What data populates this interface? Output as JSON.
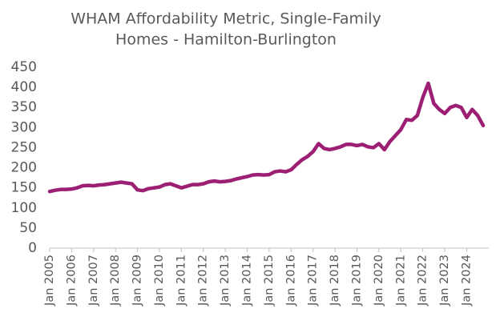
{
  "chart_data": {
    "type": "line",
    "title": [
      "WHAM Affordability Metric, Single-Family",
      "Homes - Hamilton-Burlington"
    ],
    "categories": [
      "Jan 2005",
      null,
      null,
      null,
      "Jan 2006",
      null,
      null,
      null,
      "Jan 2007",
      null,
      null,
      null,
      "Jan 2008",
      null,
      null,
      null,
      "Jan 2009",
      null,
      null,
      null,
      "Jan 2010",
      null,
      null,
      null,
      "Jan 2011",
      null,
      null,
      null,
      "Jan 2012",
      null,
      null,
      null,
      "Jan 2013",
      null,
      null,
      null,
      "Jan 2014",
      null,
      null,
      null,
      "Jan 2015",
      null,
      null,
      null,
      "Jan 2016",
      null,
      null,
      null,
      "Jan 2017",
      null,
      null,
      null,
      "Jan 2018",
      null,
      null,
      null,
      "Jan 2019",
      null,
      null,
      null,
      "Jan 2020",
      null,
      null,
      null,
      "Jan 2021",
      null,
      null,
      null,
      "Jan 2022",
      null,
      null,
      null,
      "Jan 2023",
      null,
      null,
      null,
      "Jan 2024",
      null,
      null,
      null
    ],
    "series": [
      {
        "name": "WHAM Affordability Metric",
        "color": "#9c1f74",
        "values": [
          141,
          144,
          146,
          146,
          147,
          150,
          155,
          156,
          155,
          157,
          158,
          160,
          162,
          164,
          162,
          160,
          145,
          143,
          148,
          150,
          152,
          158,
          160,
          155,
          150,
          154,
          158,
          158,
          160,
          165,
          167,
          165,
          166,
          168,
          172,
          175,
          178,
          182,
          183,
          182,
          183,
          190,
          192,
          190,
          195,
          208,
          220,
          228,
          240,
          260,
          248,
          245,
          248,
          252,
          258,
          258,
          255,
          258,
          252,
          250,
          260,
          245,
          265,
          280,
          295,
          320,
          318,
          330,
          375,
          410,
          360,
          345,
          335,
          350,
          355,
          350,
          325,
          345,
          330,
          305
        ]
      }
    ],
    "ylim": [
      0,
      450
    ],
    "yticks": [
      0,
      50,
      100,
      150,
      200,
      250,
      300,
      350,
      400,
      450
    ],
    "grid": false
  }
}
